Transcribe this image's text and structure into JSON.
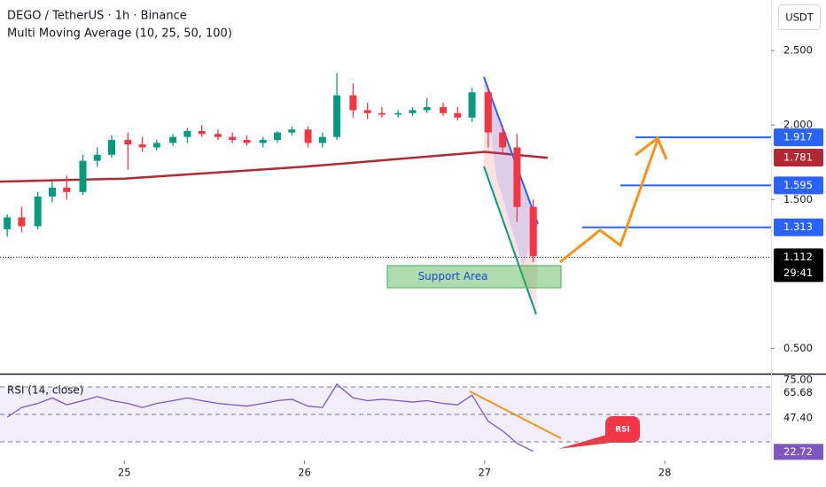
{
  "chart_data": [
    {
      "type": "candlestick",
      "title": "DEGO / TetherUS · 1h · Binance",
      "subtitle": "Multi Moving Average (10, 25, 50, 100)",
      "currency": "USDT",
      "countdown": "29:41",
      "up_color": "#089981",
      "down_color": "#f23645",
      "x": [
        24.35,
        24.43,
        24.52,
        24.6,
        24.68,
        24.77,
        24.85,
        24.93,
        25.02,
        25.1,
        25.18,
        25.27,
        25.35,
        25.43,
        25.52,
        25.6,
        25.68,
        25.77,
        25.85,
        25.93,
        26.02,
        26.1,
        26.18,
        26.27,
        26.35,
        26.43,
        26.52,
        26.6,
        26.68,
        26.77,
        26.85,
        26.93,
        27.02,
        27.1,
        27.18,
        27.27
      ],
      "ohlc": [
        [
          1.3,
          1.4,
          1.25,
          1.38
        ],
        [
          1.38,
          1.45,
          1.28,
          1.32
        ],
        [
          1.32,
          1.55,
          1.3,
          1.52
        ],
        [
          1.52,
          1.62,
          1.48,
          1.58
        ],
        [
          1.58,
          1.66,
          1.5,
          1.55
        ],
        [
          1.55,
          1.8,
          1.53,
          1.76
        ],
        [
          1.76,
          1.85,
          1.72,
          1.8
        ],
        [
          1.8,
          1.93,
          1.78,
          1.9
        ],
        [
          1.9,
          1.95,
          1.7,
          1.87
        ],
        [
          1.87,
          1.92,
          1.82,
          1.85
        ],
        [
          1.85,
          1.9,
          1.83,
          1.88
        ],
        [
          1.88,
          1.94,
          1.86,
          1.92
        ],
        [
          1.92,
          1.98,
          1.88,
          1.96
        ],
        [
          1.96,
          2.0,
          1.92,
          1.94
        ],
        [
          1.94,
          1.97,
          1.9,
          1.92
        ],
        [
          1.92,
          1.95,
          1.88,
          1.9
        ],
        [
          1.9,
          1.93,
          1.86,
          1.88
        ],
        [
          1.88,
          1.92,
          1.85,
          1.9
        ],
        [
          1.9,
          1.96,
          1.88,
          1.95
        ],
        [
          1.95,
          1.99,
          1.93,
          1.97
        ],
        [
          1.97,
          1.99,
          1.85,
          1.88
        ],
        [
          1.88,
          1.95,
          1.85,
          1.92
        ],
        [
          1.92,
          2.35,
          1.9,
          2.2
        ],
        [
          2.2,
          2.28,
          2.05,
          2.1
        ],
        [
          2.1,
          2.15,
          2.04,
          2.08
        ],
        [
          2.08,
          2.12,
          2.05,
          2.07
        ],
        [
          2.07,
          2.1,
          2.05,
          2.08
        ],
        [
          2.08,
          2.12,
          2.06,
          2.1
        ],
        [
          2.1,
          2.18,
          2.08,
          2.12
        ],
        [
          2.12,
          2.15,
          2.06,
          2.08
        ],
        [
          2.08,
          2.12,
          2.03,
          2.05
        ],
        [
          2.05,
          2.25,
          2.02,
          2.22
        ],
        [
          2.22,
          2.24,
          1.85,
          1.95
        ],
        [
          1.95,
          2.0,
          1.8,
          1.85
        ],
        [
          1.85,
          1.94,
          1.35,
          1.45
        ],
        [
          1.45,
          1.5,
          1.08,
          1.12
        ]
      ],
      "ma": {
        "color": "#b22833",
        "x": [
          24.31,
          25.0,
          26.0,
          27.0,
          27.35
        ],
        "values": [
          1.62,
          1.64,
          1.72,
          1.82,
          1.78
        ]
      },
      "price_labels": {
        "values": [
          1.917,
          1.781,
          1.595,
          1.313,
          1.112
        ],
        "colors": [
          "#2962ff",
          "#b22833",
          "#2962ff",
          "#2962ff",
          "#000000"
        ]
      },
      "support_label": "Support Area",
      "xlim": [
        24.31,
        28.59
      ],
      "xticks": [
        25,
        26,
        27,
        28
      ],
      "ylim": [
        0.33,
        2.84
      ],
      "yticks": [
        {
          "value": 0.5,
          "label": "0.500"
        },
        {
          "value": 1.5,
          "label": "1.500"
        },
        {
          "value": 2.0,
          "label": "2.000"
        },
        {
          "value": 2.5,
          "label": "2.500"
        }
      ]
    },
    {
      "type": "line",
      "title": "RSI (14, close)",
      "color": "#7e57c2",
      "x": [
        24.35,
        24.43,
        24.52,
        24.6,
        24.68,
        24.77,
        24.85,
        24.93,
        25.02,
        25.1,
        25.18,
        25.27,
        25.35,
        25.43,
        25.52,
        25.6,
        25.68,
        25.77,
        25.85,
        25.93,
        26.02,
        26.1,
        26.18,
        26.27,
        26.35,
        26.43,
        26.52,
        26.6,
        26.68,
        26.77,
        26.85,
        26.93,
        27.02,
        27.1,
        27.18,
        27.27
      ],
      "values": [
        48,
        55,
        58,
        62,
        57,
        60,
        63,
        60,
        58,
        55,
        58,
        60,
        62,
        60,
        58,
        57,
        56,
        58,
        60,
        61,
        56,
        55,
        72,
        62,
        60,
        61,
        60,
        59,
        60,
        58,
        57,
        64,
        45,
        38,
        29,
        23
      ],
      "levels": [
        70,
        50,
        30
      ],
      "markers": {
        "values": [
          65.68,
          47.4,
          22.72
        ],
        "value_labels": [
          "65.68",
          "47.40",
          "22.72"
        ],
        "colors": [
          "#ffffff",
          "#ffffff",
          "#7e57c2"
        ]
      },
      "callout": "RSI",
      "ylim": [
        16.5,
        79
      ],
      "yticks": [
        {
          "value": 75,
          "label": "75.00"
        }
      ]
    }
  ]
}
